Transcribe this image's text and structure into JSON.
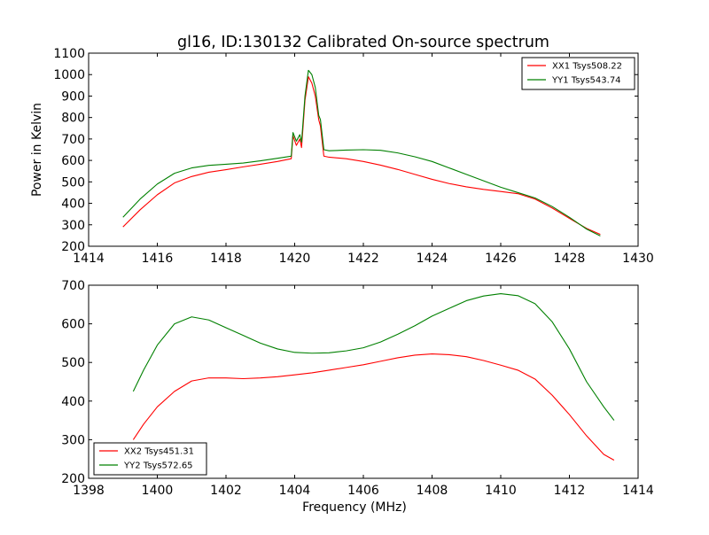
{
  "figure": {
    "title": "gl16, ID:130132 Calibrated On-source spectrum"
  },
  "chart_data": [
    {
      "type": "line",
      "title": "gl16, ID:130132 Calibrated On-source spectrum",
      "xlabel": "",
      "ylabel": "Power in Kelvin",
      "xlim": [
        1414,
        1430
      ],
      "ylim": [
        200,
        1100
      ],
      "xticks": [
        1414,
        1416,
        1418,
        1420,
        1422,
        1424,
        1426,
        1428,
        1430
      ],
      "yticks": [
        200,
        300,
        400,
        500,
        600,
        700,
        800,
        900,
        1000,
        1100
      ],
      "grid": false,
      "legend": "top-right",
      "series": [
        {
          "name": "XX1 Tsys508.22",
          "color": "#ff0000",
          "x": [
            1415.0,
            1415.5,
            1416.0,
            1416.5,
            1417.0,
            1417.5,
            1418.0,
            1418.5,
            1419.0,
            1419.5,
            1419.9,
            1419.95,
            1420.05,
            1420.15,
            1420.2,
            1420.3,
            1420.4,
            1420.5,
            1420.6,
            1420.7,
            1420.75,
            1420.85,
            1421.0,
            1421.5,
            1422.0,
            1422.5,
            1423.0,
            1423.5,
            1424.0,
            1424.5,
            1425.0,
            1425.5,
            1426.0,
            1426.5,
            1427.0,
            1427.5,
            1428.0,
            1428.5,
            1428.9
          ],
          "y": [
            290,
            370,
            440,
            495,
            525,
            545,
            557,
            570,
            582,
            595,
            608,
            715,
            670,
            700,
            660,
            880,
            990,
            960,
            900,
            790,
            760,
            620,
            615,
            608,
            595,
            578,
            558,
            535,
            512,
            492,
            477,
            465,
            455,
            445,
            420,
            378,
            330,
            283,
            255
          ]
        },
        {
          "name": "YY1 Tsys543.74",
          "color": "#008000",
          "x": [
            1415.0,
            1415.5,
            1416.0,
            1416.5,
            1417.0,
            1417.5,
            1418.0,
            1418.5,
            1419.0,
            1419.5,
            1419.9,
            1419.95,
            1420.05,
            1420.15,
            1420.2,
            1420.3,
            1420.4,
            1420.5,
            1420.6,
            1420.7,
            1420.75,
            1420.85,
            1421.0,
            1421.5,
            1422.0,
            1422.5,
            1423.0,
            1423.5,
            1424.0,
            1424.5,
            1425.0,
            1425.5,
            1426.0,
            1426.5,
            1427.0,
            1427.5,
            1428.0,
            1428.5,
            1428.9
          ],
          "y": [
            335,
            420,
            490,
            540,
            565,
            577,
            582,
            588,
            598,
            610,
            620,
            730,
            690,
            720,
            685,
            900,
            1020,
            1000,
            940,
            810,
            790,
            650,
            645,
            648,
            650,
            647,
            635,
            617,
            595,
            565,
            535,
            505,
            475,
            450,
            425,
            385,
            335,
            280,
            248
          ]
        }
      ]
    },
    {
      "type": "line",
      "title": "",
      "xlabel": "Frequency (MHz)",
      "ylabel": "",
      "xlim": [
        1398,
        1414
      ],
      "ylim": [
        200,
        700
      ],
      "xticks": [
        1398,
        1400,
        1402,
        1404,
        1406,
        1408,
        1410,
        1412,
        1414
      ],
      "yticks": [
        200,
        300,
        400,
        500,
        600,
        700
      ],
      "grid": false,
      "legend": "bottom-left",
      "series": [
        {
          "name": "XX2 Tsys451.31",
          "color": "#ff0000",
          "x": [
            1399.3,
            1399.6,
            1400.0,
            1400.5,
            1401.0,
            1401.5,
            1402.0,
            1402.5,
            1403.0,
            1403.5,
            1404.0,
            1404.5,
            1405.0,
            1405.5,
            1406.0,
            1406.5,
            1407.0,
            1407.5,
            1408.0,
            1408.5,
            1409.0,
            1409.5,
            1410.0,
            1410.5,
            1411.0,
            1411.5,
            1412.0,
            1412.5,
            1413.0,
            1413.3
          ],
          "y": [
            300,
            340,
            385,
            425,
            452,
            460,
            460,
            458,
            460,
            463,
            468,
            473,
            480,
            487,
            494,
            503,
            512,
            519,
            522,
            520,
            515,
            505,
            493,
            480,
            457,
            415,
            365,
            310,
            262,
            247
          ]
        },
        {
          "name": "YY2 Tsys572.65",
          "color": "#008000",
          "x": [
            1399.3,
            1399.6,
            1400.0,
            1400.5,
            1401.0,
            1401.5,
            1402.0,
            1402.5,
            1403.0,
            1403.5,
            1404.0,
            1404.5,
            1405.0,
            1405.5,
            1406.0,
            1406.5,
            1407.0,
            1407.5,
            1408.0,
            1408.5,
            1409.0,
            1409.5,
            1410.0,
            1410.5,
            1411.0,
            1411.5,
            1412.0,
            1412.5,
            1413.0,
            1413.3
          ],
          "y": [
            425,
            480,
            545,
            600,
            618,
            610,
            590,
            570,
            550,
            535,
            526,
            524,
            525,
            530,
            538,
            553,
            573,
            595,
            620,
            640,
            660,
            672,
            678,
            673,
            652,
            605,
            535,
            450,
            385,
            350
          ]
        }
      ]
    }
  ]
}
